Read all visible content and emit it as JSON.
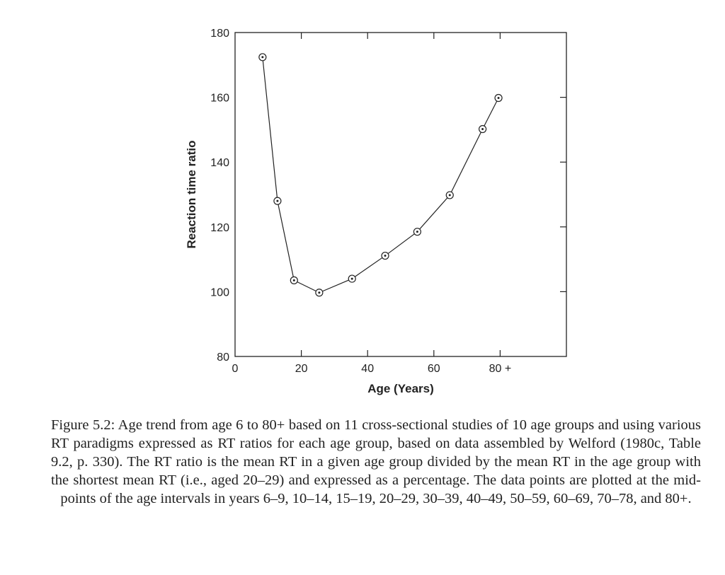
{
  "chart_data": {
    "type": "line",
    "xlabel": "Age (Years)",
    "ylabel": "Reaction time ratio",
    "xlim": [
      0,
      100
    ],
    "ylim": [
      80,
      180
    ],
    "xticks": [
      0,
      20,
      40,
      60,
      80
    ],
    "xtick_labels": [
      "0",
      "20",
      "40",
      "60",
      "80 +"
    ],
    "yticks": [
      80,
      100,
      120,
      140,
      160,
      180
    ],
    "ytick_labels": [
      "80",
      "100",
      "120",
      "140",
      "160",
      "180"
    ],
    "grid": false,
    "marker": "circled-dot",
    "series": [
      {
        "x": [
          8.3,
          12.8,
          17.8,
          25.4,
          35.3,
          45.3,
          55.0,
          64.8,
          74.7,
          79.5
        ],
        "y": [
          172.4,
          128.0,
          103.5,
          99.7,
          104.0,
          111.1,
          118.5,
          129.8,
          150.2,
          159.8
        ]
      }
    ]
  },
  "caption": "Figure 5.2: Age trend from age 6 to 80+ based on 11 cross-sectional studies of 10 age groups and using various RT paradigms expressed as RT ratios for each age group, based on data assembled by Welford (1980c, Table 9.2, p. 330). The RT ratio is the mean RT in a given age group divided by the mean RT in the age group with the shortest mean RT (i.e., aged 20–29) and expressed as a percentage. The data points are plotted at the mid-points of the age intervals in years 6–9, 10–14, 15–19, 20–29, 30–39, 40–49, 50–59, 60–69, 70–78, and 80+."
}
